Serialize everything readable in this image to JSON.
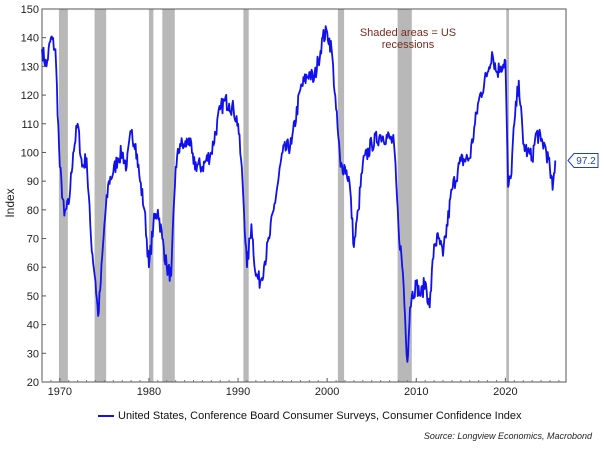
{
  "chart_data": {
    "type": "line",
    "title": "",
    "xlabel": "",
    "ylabel": "Index",
    "xlim": [
      1968,
      2026.8
    ],
    "ylim": [
      20,
      150
    ],
    "yticks": [
      20,
      30,
      40,
      50,
      60,
      70,
      80,
      90,
      100,
      110,
      120,
      130,
      140,
      150
    ],
    "xticks": [
      1970,
      1980,
      1990,
      2000,
      2010,
      2020
    ],
    "grid": false,
    "color": "#1111ee",
    "annotation": [
      "Shaded areas = US",
      "recessions"
    ],
    "last_value_label": "97.2",
    "last_value": 97.2,
    "legend": "United States, Conference Board Consumer Surveys, Consumer Confidence Index",
    "source": "Source: Longview Economics, Macrobond",
    "recessions": [
      [
        1969.9,
        1970.9
      ],
      [
        1973.9,
        1975.2
      ],
      [
        1980.0,
        1980.5
      ],
      [
        1981.5,
        1982.9
      ],
      [
        1990.6,
        1991.2
      ],
      [
        2001.2,
        2001.9
      ],
      [
        2007.9,
        2009.5
      ],
      [
        2020.1,
        2020.4
      ]
    ],
    "series": [
      {
        "name": "United States, Conference Board Consumer Surveys, Consumer Confidence Index",
        "x": [
          1968,
          1968.5,
          1969,
          1969.5,
          1970,
          1970.5,
          1971,
          1971.5,
          1972,
          1972.5,
          1973,
          1973.5,
          1974,
          1974.3,
          1974.6,
          1975,
          1975.5,
          1976,
          1976.5,
          1977,
          1977.5,
          1978,
          1978.5,
          1979,
          1979.5,
          1980,
          1980.5,
          1981,
          1981.5,
          1982,
          1982.5,
          1983,
          1983.5,
          1984,
          1984.5,
          1985,
          1986,
          1987,
          1988,
          1988.5,
          1989,
          1989.5,
          1990,
          1990.5,
          1991,
          1991.5,
          1992,
          1992.5,
          1993,
          1993.5,
          1994,
          1994.5,
          1995,
          1996,
          1997,
          1998,
          1998.5,
          1999,
          1999.5,
          2000,
          2000.5,
          2001,
          2001.5,
          2002,
          2002.5,
          2003,
          2003.5,
          2004,
          2005,
          2006,
          2007,
          2007.5,
          2008,
          2008.5,
          2009,
          2009.3,
          2009.5,
          2010,
          2010.5,
          2011,
          2011.5,
          2012,
          2012.5,
          2013,
          2014,
          2015,
          2016,
          2017,
          2018,
          2018.5,
          2019,
          2019.5,
          2020,
          2020.3,
          2020.6,
          2021,
          2021.5,
          2022,
          2022.5,
          2023,
          2023.5,
          2024,
          2024.5,
          2025,
          2025.3,
          2025.6
        ],
        "y": [
          136,
          130,
          140,
          136,
          95,
          78,
          82,
          100,
          110,
          95,
          98,
          70,
          55,
          43,
          55,
          75,
          90,
          93,
          98,
          100,
          95,
          107,
          103,
          90,
          80,
          60,
          75,
          80,
          70,
          60,
          57,
          95,
          103,
          102,
          105,
          96,
          95,
          100,
          115,
          118,
          117,
          115,
          110,
          90,
          60,
          75,
          57,
          55,
          62,
          70,
          80,
          90,
          100,
          103,
          122,
          128,
          125,
          132,
          140,
          142,
          136,
          115,
          95,
          95,
          90,
          67,
          80,
          96,
          103,
          106,
          105,
          103,
          74,
          58,
          27,
          46,
          50,
          54,
          50,
          55,
          46,
          68,
          70,
          64,
          87,
          97,
          98,
          118,
          128,
          135,
          128,
          130,
          132,
          88,
          91,
          110,
          125,
          103,
          100,
          98,
          107,
          104,
          102,
          94,
          87,
          97.2
        ]
      }
    ]
  }
}
